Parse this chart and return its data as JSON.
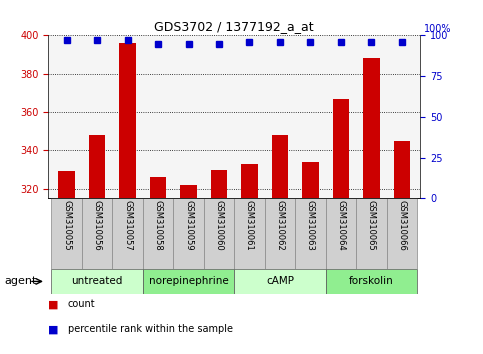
{
  "title": "GDS3702 / 1377192_a_at",
  "samples": [
    "GSM310055",
    "GSM310056",
    "GSM310057",
    "GSM310058",
    "GSM310059",
    "GSM310060",
    "GSM310061",
    "GSM310062",
    "GSM310063",
    "GSM310064",
    "GSM310065",
    "GSM310066"
  ],
  "count_values": [
    329,
    348,
    396,
    326,
    322,
    330,
    333,
    348,
    334,
    367,
    388,
    345
  ],
  "percentile_values": [
    97,
    97,
    97,
    95,
    95,
    95,
    96,
    96,
    96,
    96,
    96,
    96
  ],
  "ylim_left": [
    315,
    400
  ],
  "ylim_right": [
    0,
    100
  ],
  "yticks_left": [
    320,
    340,
    360,
    380,
    400
  ],
  "yticks_right": [
    0,
    25,
    50,
    75,
    100
  ],
  "bar_color": "#cc0000",
  "dot_color": "#0000cc",
  "bg_plot": "#f5f5f5",
  "bg_sample_row": "#d0d0d0",
  "bg_agent_row": "#90ee90",
  "bg_agent_row_light": "#ccffcc",
  "agent_groups": [
    {
      "label": "untreated",
      "start": 0,
      "end": 3
    },
    {
      "label": "norepinephrine",
      "start": 3,
      "end": 6
    },
    {
      "label": "cAMP",
      "start": 6,
      "end": 9
    },
    {
      "label": "forskolin",
      "start": 9,
      "end": 12
    }
  ],
  "left_axis_color": "#cc0000",
  "right_axis_color": "#0000cc",
  "title_fontsize": 9,
  "tick_fontsize": 7,
  "sample_fontsize": 6,
  "agent_fontsize": 7.5,
  "legend_fontsize": 7
}
